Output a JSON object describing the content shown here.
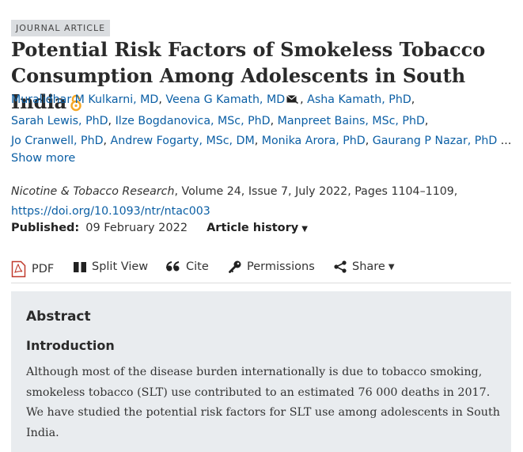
{
  "article": {
    "badge": "JOURNAL ARTICLE",
    "title": "Potential Risk Factors of Smokeless Tobacco Consumption Among Adolescents in South India",
    "authors": [
      "Muralidhar M Kulkarni, MD",
      "Veena G Kamath, MD",
      "Asha Kamath, PhD",
      "Sarah Lewis, PhD",
      "Ilze Bogdanovica, MSc, PhD",
      "Manpreet Bains, MSc, PhD",
      "Jo Cranwell, PhD",
      "Andrew Fogarty, MSc, DM",
      "Monika Arora, PhD",
      "Gaurang P Nazar, PhD"
    ],
    "ellipsis": "...",
    "show_more": "Show more",
    "citation": {
      "journal": "Nicotine & Tobacco Research",
      "details": ", Volume 24, Issue 7, July 2022, Pages 1104–1109,",
      "doi": "https://doi.org/10.1093/ntr/ntac003"
    },
    "published_label": "Published:",
    "published_date": "09 February 2022",
    "history_label": "Article history"
  },
  "toolbar": {
    "pdf": "PDF",
    "split_view": "Split View",
    "cite": "Cite",
    "permissions": "Permissions",
    "share": "Share"
  },
  "abstract": {
    "heading": "Abstract",
    "section": "Introduction",
    "text": "Although most of the disease burden internationally is due to tobacco smoking, smokeless tobacco (SLT) use contributed to an estimated 76 000 deaths in 2017. We have studied the potential risk factors for SLT use among adolescents in South India."
  },
  "colors": {
    "link": "#0b5fa5",
    "open_access": "#f5a623",
    "pdf_red": "#c0392b",
    "abstract_bg": "#e9ecef"
  }
}
